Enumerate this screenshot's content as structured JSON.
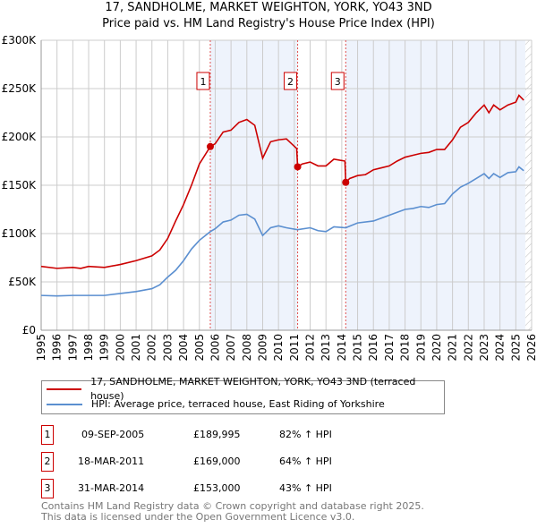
{
  "title": "17, SANDHOLME, MARKET WEIGHTON, YORK, YO43 3ND",
  "subtitle": "Price paid vs. HM Land Registry's House Price Index (HPI)",
  "chart_data": {
    "type": "line",
    "ylim": [
      0,
      300000
    ],
    "xlim": [
      1995,
      2026
    ],
    "yticks": [
      {
        "v": 0,
        "label": "£0"
      },
      {
        "v": 50000,
        "label": "£50K"
      },
      {
        "v": 100000,
        "label": "£100K"
      },
      {
        "v": 150000,
        "label": "£150K"
      },
      {
        "v": 200000,
        "label": "£200K"
      },
      {
        "v": 250000,
        "label": "£250K"
      },
      {
        "v": 300000,
        "label": "£300K"
      }
    ],
    "xticks": [
      1995,
      1996,
      1997,
      1998,
      1999,
      2000,
      2001,
      2002,
      2003,
      2004,
      2005,
      2006,
      2007,
      2008,
      2009,
      2010,
      2011,
      2012,
      2013,
      2014,
      2015,
      2016,
      2017,
      2018,
      2019,
      2020,
      2021,
      2022,
      2023,
      2024,
      2025,
      2026
    ],
    "grid": true,
    "colors": {
      "property": "#cc0000",
      "hpi": "#5b8fd0",
      "shade": "#eef3fc"
    },
    "shaded_ranges": [
      [
        2005.69,
        2011.21
      ],
      [
        2014.25,
        2025.6
      ]
    ],
    "hatched_from": 2025.6,
    "series": [
      {
        "name": "17, SANDHOLME, MARKET WEIGHTON, YORK, YO43 3ND (terraced house)",
        "x": [
          1995,
          1996,
          1997,
          1997.5,
          1998,
          1999,
          2000,
          2001,
          2002,
          2002.5,
          2003,
          2003.5,
          2004,
          2004.5,
          2005,
          2005.69,
          2006,
          2006.5,
          2007,
          2007.5,
          2008,
          2008.5,
          2009,
          2009.5,
          2010,
          2010.5,
          2011.15,
          2011.21,
          2011.5,
          2012,
          2012.5,
          2013,
          2013.5,
          2014.2,
          2014.25,
          2014.5,
          2015,
          2015.5,
          2016,
          2016.5,
          2017,
          2017.5,
          2018,
          2018.5,
          2019,
          2019.5,
          2020,
          2020.5,
          2021,
          2021.5,
          2022,
          2022.5,
          2023,
          2023.3,
          2023.6,
          2024,
          2024.5,
          2025,
          2025.2,
          2025.5
        ],
        "y": [
          66000,
          64000,
          65000,
          64000,
          66000,
          65000,
          68000,
          72000,
          77000,
          83000,
          95000,
          113000,
          130000,
          150000,
          172000,
          189995,
          193000,
          205000,
          207000,
          215000,
          218000,
          212000,
          178000,
          195000,
          197000,
          198000,
          188000,
          169000,
          172000,
          174000,
          170000,
          170000,
          177000,
          175000,
          153000,
          157000,
          160000,
          161000,
          166000,
          168000,
          170000,
          175000,
          179000,
          181000,
          183000,
          184000,
          187000,
          187000,
          197000,
          210000,
          215000,
          225000,
          233000,
          225000,
          233000,
          228000,
          233000,
          236000,
          243000,
          238000
        ]
      },
      {
        "name": "HPI: Average price, terraced house, East Riding of Yorkshire",
        "x": [
          1995,
          1996,
          1997,
          1998,
          1999,
          2000,
          2001,
          2002,
          2002.5,
          2003,
          2003.5,
          2004,
          2004.5,
          2005,
          2005.69,
          2006,
          2006.5,
          2007,
          2007.5,
          2008,
          2008.5,
          2009,
          2009.5,
          2010,
          2010.5,
          2011.2,
          2012,
          2012.5,
          2013,
          2013.5,
          2014.25,
          2015,
          2016,
          2016.5,
          2017,
          2017.5,
          2018,
          2018.5,
          2019,
          2019.5,
          2020,
          2020.5,
          2021,
          2021.5,
          2022,
          2022.5,
          2023,
          2023.3,
          2023.6,
          2024,
          2024.5,
          2025,
          2025.2,
          2025.5
        ],
        "y": [
          36000,
          35500,
          36000,
          36000,
          36000,
          38000,
          40000,
          43000,
          47000,
          55000,
          62000,
          72000,
          84000,
          93000,
          102000,
          105000,
          112000,
          114000,
          119000,
          120000,
          115000,
          98000,
          106000,
          108000,
          106000,
          104000,
          106000,
          103000,
          102000,
          107000,
          106000,
          111000,
          113000,
          116000,
          119000,
          122000,
          125000,
          126000,
          128000,
          127000,
          130000,
          131000,
          141000,
          148000,
          152000,
          157000,
          162000,
          157000,
          162000,
          158000,
          163000,
          164000,
          169000,
          165000
        ]
      }
    ],
    "sales": [
      {
        "n": "1",
        "x": 2005.69,
        "y": 189995
      },
      {
        "n": "2",
        "x": 2011.21,
        "y": 169000
      },
      {
        "n": "3",
        "x": 2014.25,
        "y": 153000
      }
    ]
  },
  "legend": [
    "17, SANDHOLME, MARKET WEIGHTON, YORK, YO43 3ND (terraced house)",
    "HPI: Average price, terraced house, East Riding of Yorkshire"
  ],
  "transactions": [
    {
      "n": "1",
      "date": "09-SEP-2005",
      "price": "£189,995",
      "hpi": "82% ↑ HPI"
    },
    {
      "n": "2",
      "date": "18-MAR-2011",
      "price": "£169,000",
      "hpi": "64% ↑ HPI"
    },
    {
      "n": "3",
      "date": "31-MAR-2014",
      "price": "£153,000",
      "hpi": "43% ↑ HPI"
    }
  ],
  "footer": [
    "Contains HM Land Registry data © Crown copyright and database right 2025.",
    "This data is licensed under the Open Government Licence v3.0."
  ]
}
